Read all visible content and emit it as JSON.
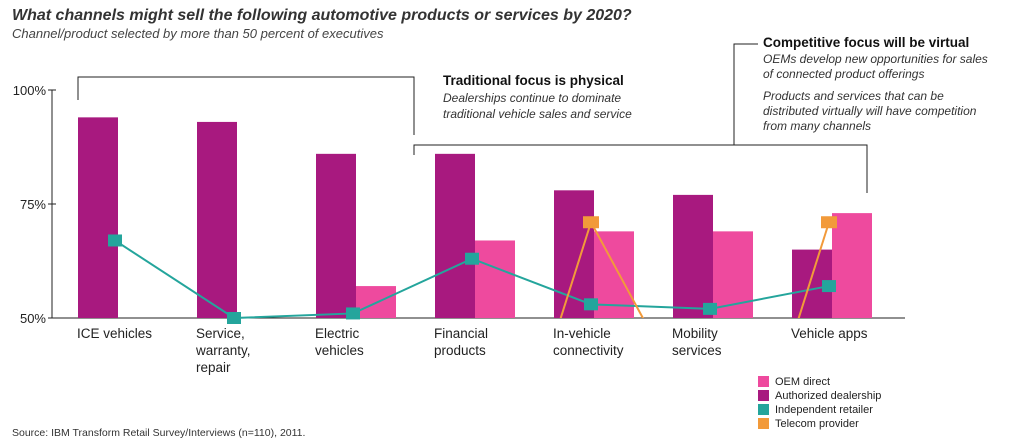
{
  "header": {
    "title": "What channels might sell the following automotive products or services by 2020?",
    "subtitle": "Channel/product selected by more than 50 percent of executives"
  },
  "annotations": {
    "physical": {
      "heading": "Traditional focus is physical",
      "lines": [
        "Dealerships continue to dominate",
        "traditional vehicle sales and service"
      ]
    },
    "virtual": {
      "heading": "Competitive focus will be virtual",
      "lines": [
        "OEMs develop new opportunities for sales",
        "of connected product offerings",
        "Products and services that can be",
        "distributed virtually will have competition",
        "from many channels"
      ]
    }
  },
  "source": "Source: IBM Transform Retail Survey/Interviews (n=110), 2011.",
  "colors": {
    "oem_direct": "#ee4a9e",
    "authorized_dealership": "#a8197f",
    "independent_retailer": "#24a59c",
    "telecom_provider": "#f29a3a",
    "axis": "#222222"
  },
  "chart_data": {
    "type": "bar",
    "title": "What channels might sell the following automotive products or services by 2020?",
    "subtitle": "Channel/product selected by more than 50 percent of executives",
    "ylim": [
      50,
      100
    ],
    "yticks": [
      "50%",
      "75%",
      "100%"
    ],
    "ytick_values": [
      50,
      75,
      100
    ],
    "categories": [
      [
        "ICE vehicles"
      ],
      [
        "Service,",
        "warranty,",
        "repair"
      ],
      [
        "Electric",
        "vehicles"
      ],
      [
        "Financial",
        "products"
      ],
      [
        "In-vehicle",
        "connectivity"
      ],
      [
        "Mobility",
        "services"
      ],
      [
        "Vehicle apps"
      ]
    ],
    "series": [
      {
        "name": "Authorized dealership",
        "kind": "bar",
        "color": "#a8197f",
        "values": [
          94,
          93,
          86,
          86,
          78,
          77,
          65
        ]
      },
      {
        "name": "OEM direct",
        "kind": "bar",
        "color": "#ee4a9e",
        "values": [
          null,
          null,
          57,
          67,
          69,
          69,
          73
        ]
      },
      {
        "name": "Independent retailer",
        "kind": "line",
        "color": "#24a59c",
        "values": [
          67,
          50,
          51,
          63,
          53,
          52,
          57
        ]
      },
      {
        "name": "Telecom provider",
        "kind": "line",
        "color": "#f29a3a",
        "values": [
          null,
          null,
          null,
          null,
          71,
          null,
          71
        ]
      }
    ],
    "legend": {
      "position": "bottom-right",
      "entries": [
        "OEM direct",
        "Authorized dealership",
        "Independent retailer",
        "Telecom provider"
      ]
    }
  }
}
